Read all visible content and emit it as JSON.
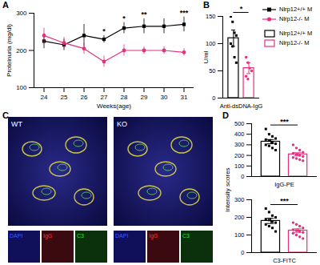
{
  "chart_data": [
    {
      "type": "line",
      "title": "A",
      "x_label": "Weeks(age)",
      "y_label": "Proteinuria (mg/dl)",
      "x": [
        24,
        25,
        26,
        27,
        28,
        29,
        30,
        31
      ],
      "series": [
        {
          "name": "Nlrp12+/+ M",
          "color": "#000000",
          "marker": "square",
          "values": [
            225,
            215,
            240,
            230,
            260,
            265,
            265,
            270
          ],
          "error": [
            20,
            15,
            30,
            10,
            15,
            20,
            20,
            20
          ]
        },
        {
          "name": "Nlrp12-/- M",
          "color": "#e4317f",
          "marker": "circle",
          "values": [
            240,
            220,
            205,
            170,
            200,
            200,
            200,
            195
          ],
          "error": [
            20,
            15,
            15,
            15,
            15,
            10,
            10,
            10
          ]
        }
      ],
      "annotations": [
        {
          "x": 27,
          "label": "*"
        },
        {
          "x": 28,
          "label": "*"
        },
        {
          "x": 29,
          "label": "**"
        },
        {
          "x": 31,
          "label": "***"
        }
      ],
      "xlim": [
        23.5,
        31.5
      ],
      "xticks": [
        24,
        25,
        26,
        27,
        28,
        29,
        30,
        31
      ],
      "ylim": [
        100,
        300
      ],
      "yticks": [
        100,
        200,
        300
      ],
      "legend": "top-right"
    },
    {
      "type": "bar",
      "title": "B",
      "x_label": "Anti-dsDNA-IgG",
      "y_label": "U/ml",
      "tick_labels": "y",
      "series": [
        {
          "name": "Nlrp12+/+ M",
          "color": "#000000",
          "marker": "square",
          "values": [
            110
          ],
          "error": [
            15
          ],
          "points": [
            150,
            140,
            120,
            115,
            100,
            95,
            75,
            65
          ]
        },
        {
          "name": "Nlrp12-/- M",
          "color": "#e4317f",
          "marker": "circle",
          "values": [
            55
          ],
          "error": [
            10
          ],
          "points": [
            75,
            65,
            55,
            50,
            40,
            35
          ]
        }
      ],
      "significance": "*",
      "ylim": [
        0,
        150
      ],
      "yticks": [
        0,
        50,
        100,
        150
      ],
      "legend": "right"
    },
    {
      "type": "bar",
      "title": "D",
      "x_label": "IgG-PE",
      "y_label": "Intensity scores",
      "tick_labels": "y",
      "series": [
        {
          "name": "Nlrp12+/+ M",
          "color": "#000000",
          "marker": "square",
          "values": [
            330
          ],
          "error": [
            20
          ],
          "points": [
            450,
            400,
            380,
            360,
            350,
            340,
            320,
            310,
            300,
            290,
            270,
            250
          ]
        },
        {
          "name": "Nlrp12-/- M",
          "color": "#e4317f",
          "marker": "circle",
          "values": [
            210
          ],
          "error": [
            15
          ],
          "points": [
            300,
            270,
            250,
            230,
            220,
            210,
            200,
            190,
            180,
            170,
            160,
            150
          ]
        }
      ],
      "significance": "***",
      "ylim": [
        0,
        500
      ],
      "yticks": [
        0,
        100,
        200,
        300,
        400,
        500
      ]
    },
    {
      "type": "bar",
      "x_label": "C3-FITC",
      "tick_labels": "y",
      "series": [
        {
          "name": "Nlrp12+/+ M",
          "color": "#000000",
          "marker": "square",
          "values": [
            180
          ],
          "error": [
            15
          ],
          "points": [
            250,
            230,
            210,
            200,
            190,
            185,
            175,
            170,
            160,
            150,
            140,
            120
          ]
        },
        {
          "name": "Nlrp12-/- M",
          "color": "#e4317f",
          "marker": "circle",
          "values": [
            125
          ],
          "error": [
            10
          ],
          "points": [
            170,
            160,
            150,
            140,
            130,
            125,
            120,
            115,
            110,
            100,
            90,
            80
          ]
        }
      ],
      "significance": "***",
      "ylim": [
        0,
        300
      ],
      "yticks": [
        0,
        100,
        200,
        300
      ]
    }
  ],
  "image_panel": {
    "title": "C",
    "images": [
      "WT",
      "KO"
    ],
    "channels": [
      "DAPI",
      "IgG",
      "C3"
    ]
  }
}
